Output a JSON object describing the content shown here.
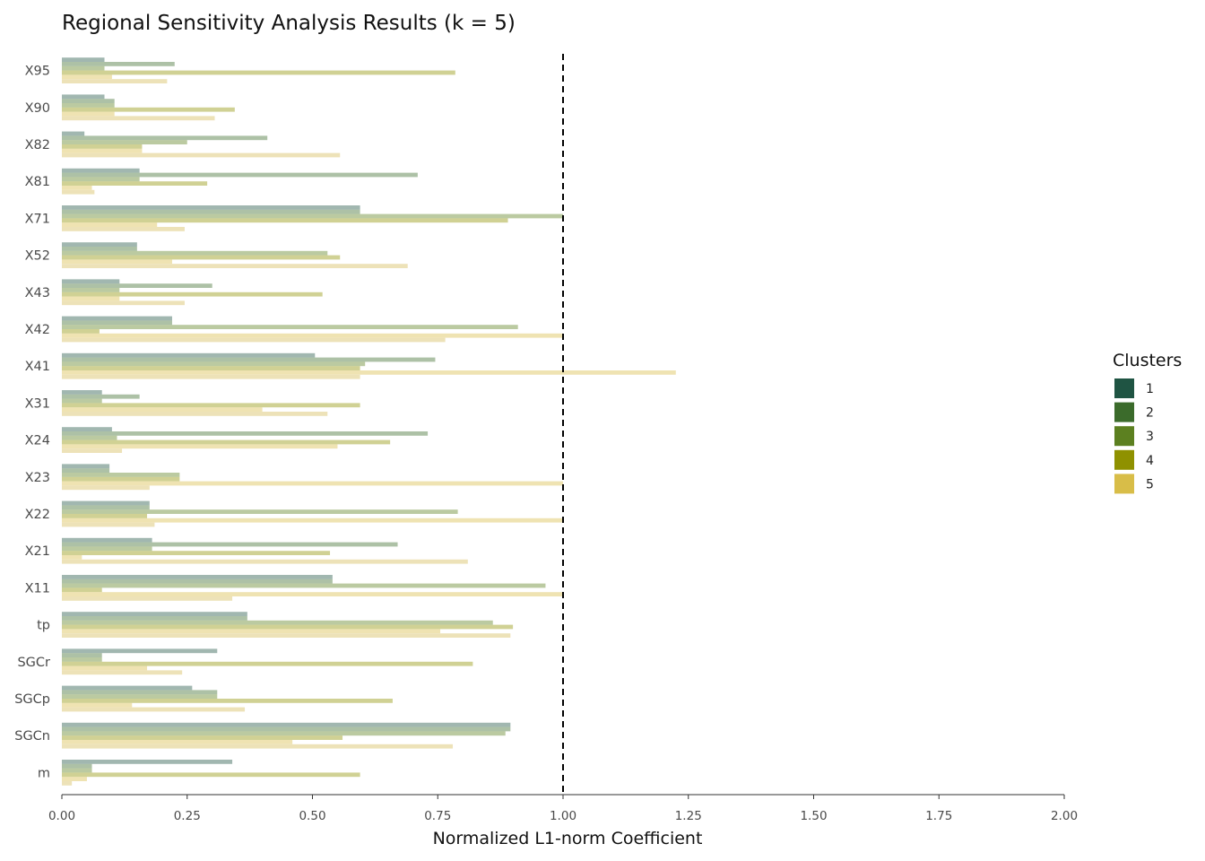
{
  "chart_data": {
    "type": "bar",
    "orientation": "horizontal",
    "title": "Regional Sensitivity Analysis Results (k = 5)",
    "xlabel": "Normalized L1-norm Coefficient",
    "ylabel": "",
    "xlim": [
      0,
      2
    ],
    "xticks": [
      "0.00",
      "0.25",
      "0.50",
      "0.75",
      "1.00",
      "1.25",
      "1.50",
      "1.75",
      "2.00"
    ],
    "reference_line": {
      "x": 1.0,
      "style": "dashed"
    },
    "grid": false,
    "legend": {
      "title": "Clusters",
      "position": "right"
    },
    "categories": [
      "X95",
      "X90",
      "X82",
      "X81",
      "X71",
      "X52",
      "X43",
      "X42",
      "X41",
      "X31",
      "X24",
      "X23",
      "X22",
      "X21",
      "X11",
      "tp",
      "SGCr",
      "SGCp",
      "SGCn",
      "m"
    ],
    "series": [
      {
        "name": "1",
        "color": "#1f5443",
        "values": [
          0.085,
          0.085,
          0.045,
          0.155,
          0.595,
          0.15,
          0.115,
          0.22,
          0.505,
          0.08,
          0.1,
          0.095,
          0.175,
          0.18,
          0.54,
          0.37,
          0.31,
          0.26,
          0.895,
          0.34
        ]
      },
      {
        "name": "2",
        "color": "#3b6b2b",
        "values": [
          0.225,
          0.105,
          0.41,
          0.71,
          0.595,
          0.15,
          0.3,
          0.22,
          0.745,
          0.155,
          0.73,
          0.095,
          0.175,
          0.67,
          0.54,
          0.37,
          0.08,
          0.31,
          0.895,
          0.06
        ]
      },
      {
        "name": "3",
        "color": "#5c8020",
        "values": [
          0.085,
          0.105,
          0.25,
          0.155,
          1.0,
          0.53,
          0.115,
          0.91,
          0.605,
          0.08,
          0.11,
          0.235,
          0.79,
          0.18,
          0.965,
          0.86,
          0.08,
          0.31,
          0.885,
          0.06
        ]
      },
      {
        "name": "4",
        "color": "#8f9100",
        "values": [
          0.785,
          0.345,
          0.16,
          0.29,
          0.89,
          0.555,
          0.52,
          0.075,
          0.595,
          0.595,
          0.655,
          0.235,
          0.17,
          0.535,
          0.08,
          0.9,
          0.82,
          0.66,
          0.56,
          0.595
        ]
      },
      {
        "name": "5",
        "color": "#d8bd48",
        "values": [
          0.1,
          0.105,
          0.16,
          0.06,
          0.19,
          0.22,
          0.115,
          1.0,
          1.225,
          0.4,
          0.55,
          1.0,
          1.0,
          0.04,
          1.0,
          0.755,
          0.17,
          0.14,
          0.46,
          0.05
        ]
      },
      {
        "name": "",
        "color": "#ede2b8",
        "values": [
          0.21,
          0.305,
          0.555,
          0.065,
          0.245,
          0.69,
          0.245,
          0.765,
          0.595,
          0.53,
          0.12,
          0.175,
          0.185,
          0.81,
          0.34,
          0.895,
          0.24,
          0.365,
          0.78,
          0.02
        ]
      }
    ]
  }
}
